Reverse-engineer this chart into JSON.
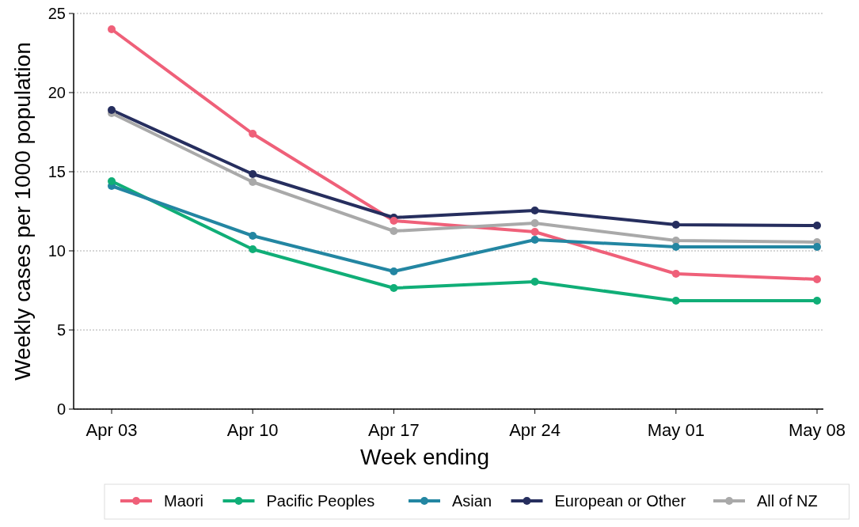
{
  "chart_data": {
    "type": "line",
    "xlabel": "Week ending",
    "ylabel": "Weekly cases per 1000 population",
    "categories": [
      "Apr 03",
      "Apr 10",
      "Apr 17",
      "Apr 24",
      "May 01",
      "May 08"
    ],
    "ylim": [
      0,
      25
    ],
    "yticks": [
      0,
      5,
      10,
      15,
      20,
      25
    ],
    "grid": "y",
    "legend": "bottom",
    "marker": "circle",
    "line_style": "solid",
    "series": [
      {
        "name": "Maori",
        "color": "#ef6079",
        "values": [
          24,
          17.4,
          11.9,
          11.2,
          8.55,
          8.2
        ]
      },
      {
        "name": "Pacific Peoples",
        "color": "#10ae77",
        "values": [
          14.4,
          10.1,
          7.65,
          8.05,
          6.85,
          6.85
        ]
      },
      {
        "name": "Asian",
        "color": "#2386a2",
        "values": [
          14.1,
          10.95,
          8.7,
          10.7,
          10.25,
          10.25
        ]
      },
      {
        "name": "European or Other",
        "color": "#262e5e",
        "values": [
          18.9,
          14.85,
          12.1,
          12.55,
          11.65,
          11.6
        ]
      },
      {
        "name": "All of NZ",
        "color": "#a9a9a9",
        "values": [
          18.7,
          14.35,
          11.25,
          11.75,
          10.65,
          10.55
        ]
      }
    ]
  }
}
